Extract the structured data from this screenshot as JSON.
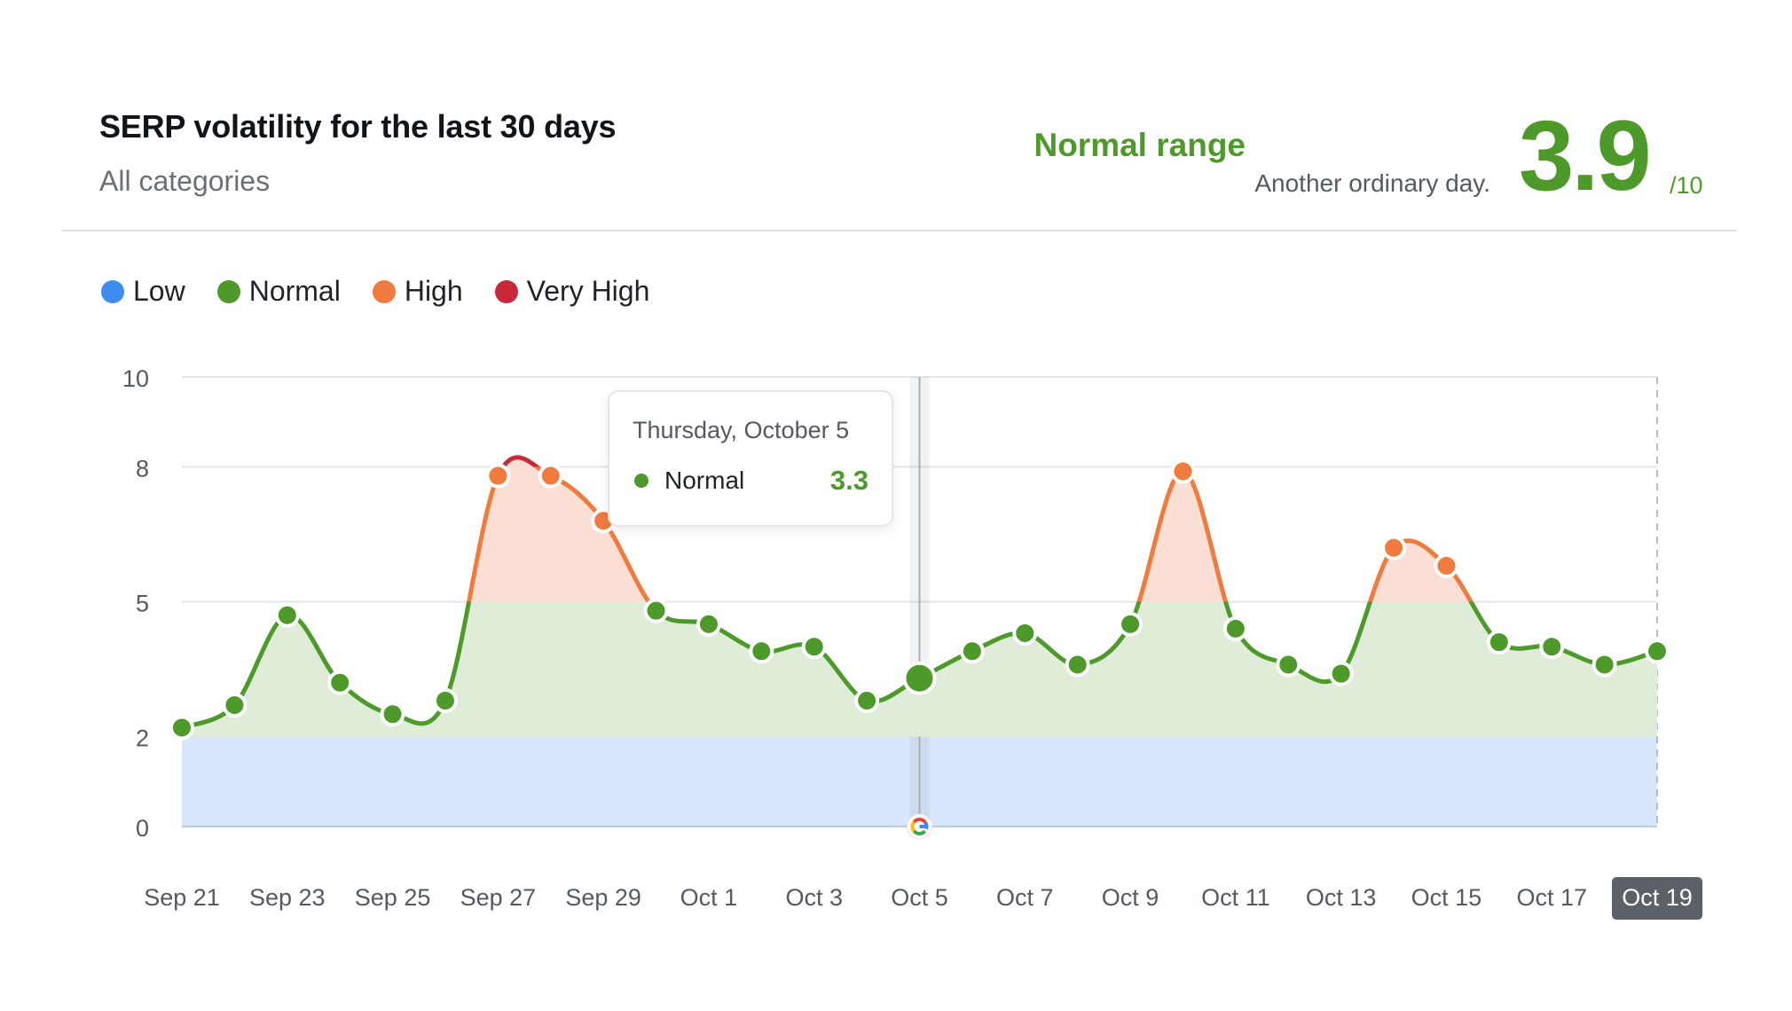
{
  "header": {
    "title": "SERP volatility for the last 30 days",
    "subtitle": "All categories",
    "status_label": "Normal range",
    "status_description": "Another ordinary day.",
    "score": "3.9",
    "score_max": "/10"
  },
  "legend": [
    {
      "label": "Low",
      "color": "#3d8df0"
    },
    {
      "label": "Normal",
      "color": "#4d9a2b"
    },
    {
      "label": "High",
      "color": "#f07b3f"
    },
    {
      "label": "Very High",
      "color": "#c8283a"
    }
  ],
  "tooltip": {
    "date": "Thursday, October 5",
    "series": "Normal",
    "value": "3.3"
  },
  "colors": {
    "low": "#3d8df0",
    "normal": "#4d9a2b",
    "high": "#f07b3f",
    "very_high": "#c8283a",
    "low_band": "#d8e6fb",
    "normal_band": "#dfedd8",
    "high_band": "#fbdfd5"
  },
  "chart_data": {
    "type": "line",
    "title": "SERP volatility for the last 30 days",
    "y_ticks": [
      "10",
      "8",
      "5",
      "2",
      "0"
    ],
    "ylim": [
      0,
      10
    ],
    "thresholds": {
      "low_max": 2,
      "normal_max": 5,
      "high_max": 8
    },
    "x_tick_labels": [
      "Sep 21",
      "Sep 23",
      "Sep 25",
      "Sep 27",
      "Sep 29",
      "Oct 1",
      "Oct 3",
      "Oct 5",
      "Oct 7",
      "Oct 9",
      "Oct 11",
      "Oct 13",
      "Oct 15",
      "Oct 17",
      "Oct 19"
    ],
    "highlighted_x_label": "Oct 19",
    "hovered_point": {
      "date": "Oct 5",
      "value": 3.3
    },
    "grid": true,
    "points": [
      {
        "date": "Sep 21",
        "value": 2.2
      },
      {
        "date": "Sep 22",
        "value": 2.7
      },
      {
        "date": "Sep 23",
        "value": 4.7
      },
      {
        "date": "Sep 24",
        "value": 3.2
      },
      {
        "date": "Sep 25",
        "value": 2.5
      },
      {
        "date": "Sep 26",
        "value": 2.8
      },
      {
        "date": "Sep 27",
        "value": 7.8
      },
      {
        "date": "Sep 28",
        "value": 7.8
      },
      {
        "date": "Sep 29",
        "value": 6.8
      },
      {
        "date": "Sep 30",
        "value": 4.8
      },
      {
        "date": "Oct 1",
        "value": 4.5
      },
      {
        "date": "Oct 2",
        "value": 3.9
      },
      {
        "date": "Oct 3",
        "value": 4.0
      },
      {
        "date": "Oct 4",
        "value": 2.8
      },
      {
        "date": "Oct 5",
        "value": 3.3
      },
      {
        "date": "Oct 6",
        "value": 3.9
      },
      {
        "date": "Oct 7",
        "value": 4.3
      },
      {
        "date": "Oct 8",
        "value": 3.6
      },
      {
        "date": "Oct 9",
        "value": 4.5
      },
      {
        "date": "Oct 10",
        "value": 7.9
      },
      {
        "date": "Oct 11",
        "value": 4.4
      },
      {
        "date": "Oct 12",
        "value": 3.6
      },
      {
        "date": "Oct 13",
        "value": 3.4
      },
      {
        "date": "Oct 14",
        "value": 6.2
      },
      {
        "date": "Oct 15",
        "value": 5.8
      },
      {
        "date": "Oct 16",
        "value": 4.1
      },
      {
        "date": "Oct 17",
        "value": 4.0
      },
      {
        "date": "Oct 18",
        "value": 3.6
      },
      {
        "date": "Oct 19",
        "value": 3.9
      }
    ]
  }
}
